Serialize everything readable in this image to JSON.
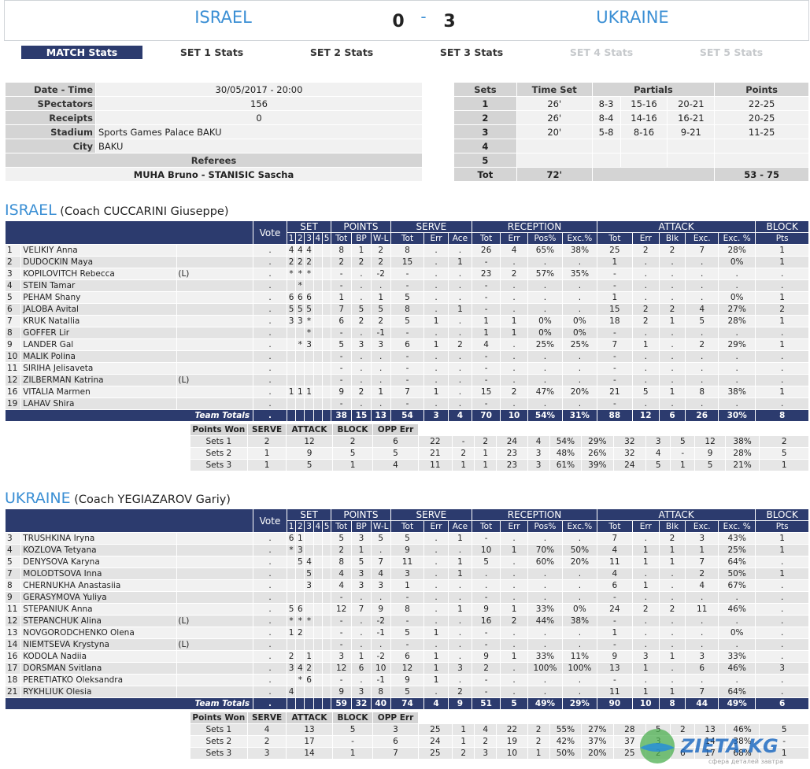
{
  "header": {
    "team_home": "ISRAEL",
    "team_away": "UKRAINE",
    "score_home": "0",
    "score_away": "3",
    "separator": "-"
  },
  "tabs": [
    {
      "label": "MATCH Stats",
      "state": "active"
    },
    {
      "label": "SET 1 Stats",
      "state": "normal"
    },
    {
      "label": "SET 2 Stats",
      "state": "normal"
    },
    {
      "label": "SET 3 Stats",
      "state": "normal"
    },
    {
      "label": "SET 4 Stats",
      "state": "disabled"
    },
    {
      "label": "SET 5 Stats",
      "state": "disabled"
    }
  ],
  "info": {
    "date_label": "Date - Time",
    "date": "30/05/2017 - 20:00",
    "spectators_label": "SPectators",
    "spectators": "156",
    "receipts_label": "Receipts",
    "receipts": "0",
    "stadium_label": "Stadium",
    "stadium": "Sports Games Palace BAKU",
    "city_label": "City",
    "city": "BAKU",
    "referees_label": "Referees",
    "referees": "MUHA Bruno - STANISIC Sascha"
  },
  "sets": {
    "headers": [
      "Sets",
      "Time Set",
      "Partials",
      "Points"
    ],
    "rows": [
      [
        "1",
        "26'",
        "8-3",
        "15-16",
        "20-21",
        "22-25"
      ],
      [
        "2",
        "26'",
        "8-4",
        "14-16",
        "16-21",
        "20-25"
      ],
      [
        "3",
        "20'",
        "5-8",
        "8-16",
        "9-21",
        "11-25"
      ],
      [
        "4",
        "",
        "",
        "",
        "",
        ""
      ],
      [
        "5",
        "",
        "",
        "",
        "",
        ""
      ]
    ],
    "total": [
      "Tot",
      "72'",
      "",
      "",
      "",
      "53 - 75"
    ]
  },
  "table_headers": {
    "vote": "Vote",
    "groups": [
      "SET",
      "POINTS",
      "SERVE",
      "RECEPTION",
      "ATTACK",
      "BLOCK"
    ],
    "sub": [
      "1",
      "2",
      "3",
      "4",
      "5",
      "Tot",
      "BP",
      "W-L",
      "Tot",
      "Err",
      "Ace",
      "Tot",
      "Err",
      "Pos%",
      "Exc.%",
      "Tot",
      "Err",
      "Blk",
      "Exc.",
      "Exc. %",
      "Pts"
    ],
    "team_totals": "Team Totals",
    "pw_headers": [
      "Points Won",
      "SERVE",
      "ATTACK",
      "BLOCK",
      "OPP Err"
    ]
  },
  "israel": {
    "name": "ISRAEL",
    "coach": "(Coach CUCCARINI Giuseppe)",
    "players": [
      [
        "1",
        "VELIKIY Anna",
        "",
        ".",
        "4",
        "4",
        "4",
        "",
        "",
        "8",
        "1",
        "2",
        "8",
        ".",
        ".",
        "26",
        "4",
        "65%",
        "38%",
        "25",
        "2",
        "2",
        "7",
        "28%",
        "1"
      ],
      [
        "2",
        "DUDOCKIN Maya",
        "",
        ".",
        "2",
        "2",
        "2",
        "",
        "",
        "2",
        "2",
        "2",
        "15",
        ".",
        "1",
        "-",
        ".",
        ".",
        ".",
        "1",
        ".",
        ".",
        ".",
        "0%",
        "1"
      ],
      [
        "3",
        "KOPILOVITCH Rebecca",
        "(L)",
        ".",
        "*",
        "*",
        "*",
        "",
        "",
        "-",
        ".",
        "-2",
        "-",
        ".",
        ".",
        "23",
        "2",
        "57%",
        "35%",
        "-",
        ".",
        ".",
        ".",
        ".",
        "."
      ],
      [
        "4",
        "STEIN Tamar",
        "",
        ".",
        "",
        "*",
        "",
        "",
        "",
        "-",
        ".",
        ".",
        "-",
        ".",
        ".",
        "-",
        ".",
        ".",
        ".",
        "-",
        ".",
        ".",
        ".",
        ".",
        "."
      ],
      [
        "5",
        "PEHAM Shany",
        "",
        ".",
        "6",
        "6",
        "6",
        "",
        "",
        "1",
        ".",
        "1",
        "5",
        ".",
        ".",
        "-",
        ".",
        ".",
        ".",
        "1",
        ".",
        ".",
        ".",
        "0%",
        "1"
      ],
      [
        "6",
        "JALOBA Avital",
        "",
        ".",
        "5",
        "5",
        "5",
        "",
        "",
        "7",
        "5",
        "5",
        "8",
        ".",
        "1",
        "-",
        ".",
        ".",
        ".",
        "15",
        "2",
        "2",
        "4",
        "27%",
        "2"
      ],
      [
        "7",
        "KRUK Natallia",
        "",
        ".",
        "3",
        "3",
        "*",
        "",
        "",
        "6",
        "2",
        "2",
        "5",
        "1",
        ".",
        "1",
        "1",
        "0%",
        "0%",
        "18",
        "2",
        "1",
        "5",
        "28%",
        "1"
      ],
      [
        "8",
        "GOFFER Lir",
        "",
        ".",
        "",
        "",
        "*",
        "",
        "",
        "-",
        ".",
        "-1",
        "-",
        ".",
        ".",
        "1",
        "1",
        "0%",
        "0%",
        "-",
        ".",
        ".",
        ".",
        ".",
        "."
      ],
      [
        "9",
        "LANDER Gal",
        "",
        ".",
        "",
        "*",
        "3",
        "",
        "",
        "5",
        "3",
        "3",
        "6",
        "1",
        "2",
        "4",
        ".",
        "25%",
        "25%",
        "7",
        "1",
        ".",
        "2",
        "29%",
        "1"
      ],
      [
        "10",
        "MALIK Polina",
        "",
        ".",
        "",
        "",
        "",
        "",
        "",
        "-",
        ".",
        ".",
        "-",
        ".",
        ".",
        "-",
        ".",
        ".",
        ".",
        "-",
        ".",
        ".",
        ".",
        ".",
        "."
      ],
      [
        "11",
        "SIRIHA Jelisaveta",
        "",
        ".",
        "",
        "",
        "",
        "",
        "",
        "-",
        ".",
        ".",
        "-",
        ".",
        ".",
        "-",
        ".",
        ".",
        ".",
        "-",
        ".",
        ".",
        ".",
        ".",
        "."
      ],
      [
        "12",
        "ZILBERMAN Katrina",
        "(L)",
        ".",
        "",
        "",
        "",
        "",
        "",
        "-",
        ".",
        ".",
        "-",
        ".",
        ".",
        "-",
        ".",
        ".",
        ".",
        "-",
        ".",
        ".",
        ".",
        ".",
        "."
      ],
      [
        "16",
        "VITALIA Marmen",
        "",
        ".",
        "1",
        "1",
        "1",
        "",
        "",
        "9",
        "2",
        "1",
        "7",
        "1",
        ".",
        "15",
        "2",
        "47%",
        "20%",
        "21",
        "5",
        "1",
        "8",
        "38%",
        "1"
      ],
      [
        "19",
        "LAHAV Shira",
        "",
        ".",
        "",
        "",
        "",
        "",
        "",
        "-",
        ".",
        ".",
        "-",
        ".",
        ".",
        "-",
        ".",
        ".",
        ".",
        "-",
        ".",
        ".",
        ".",
        ".",
        "."
      ]
    ],
    "totals": [
      ".",
      "",
      "",
      "",
      "",
      "",
      "38",
      "15",
      "13",
      "54",
      "3",
      "4",
      "70",
      "10",
      "54%",
      "31%",
      "88",
      "12",
      "6",
      "26",
      "30%",
      "8"
    ],
    "points_won": [
      [
        "Sets 1",
        "2",
        "12",
        "2",
        "6",
        "22",
        "-",
        "2",
        "24",
        "4",
        "54%",
        "29%",
        "32",
        "3",
        "5",
        "12",
        "38%",
        "2"
      ],
      [
        "Sets 2",
        "1",
        "9",
        "5",
        "5",
        "21",
        "2",
        "1",
        "23",
        "3",
        "48%",
        "26%",
        "32",
        "4",
        "-",
        "9",
        "28%",
        "5"
      ],
      [
        "Sets 3",
        "1",
        "5",
        "1",
        "4",
        "11",
        "1",
        "1",
        "23",
        "3",
        "61%",
        "39%",
        "24",
        "5",
        "1",
        "5",
        "21%",
        "1"
      ]
    ]
  },
  "ukraine": {
    "name": "UKRAINE",
    "coach": "(Coach YEGIAZAROV Gariy)",
    "players": [
      [
        "3",
        "TRUSHKINA Iryna",
        "",
        ".",
        "6",
        "1",
        "",
        "",
        "",
        "5",
        "3",
        "5",
        "5",
        ".",
        "1",
        "-",
        ".",
        ".",
        ".",
        "7",
        ".",
        "2",
        "3",
        "43%",
        "1"
      ],
      [
        "4",
        "KOZLOVA Tetyana",
        "",
        ".",
        "*",
        "3",
        "",
        "",
        "",
        "2",
        "1",
        ".",
        "9",
        ".",
        ".",
        "10",
        "1",
        "70%",
        "50%",
        "4",
        "1",
        "1",
        "1",
        "25%",
        "1"
      ],
      [
        "5",
        "DENYSOVA Karyna",
        "",
        ".",
        "",
        "5",
        "4",
        "",
        "",
        "8",
        "5",
        "7",
        "11",
        ".",
        "1",
        "5",
        ".",
        "60%",
        "20%",
        "11",
        "1",
        "1",
        "7",
        "64%",
        "."
      ],
      [
        "7",
        "MOLODTSOVA Inna",
        "",
        ".",
        "",
        "",
        "5",
        "",
        "",
        "4",
        "3",
        "4",
        "3",
        ".",
        "1",
        ".",
        ".",
        ".",
        ".",
        "4",
        ".",
        ".",
        "2",
        "50%",
        "1"
      ],
      [
        "8",
        "CHERNUKHA Anastasiia",
        "",
        ".",
        "",
        "",
        "3",
        "",
        "",
        "4",
        "3",
        "3",
        "1",
        ".",
        ".",
        ".",
        ".",
        ".",
        ".",
        "6",
        "1",
        ".",
        "4",
        "67%",
        "."
      ],
      [
        "9",
        "GERASYMOVA Yuliya",
        "",
        ".",
        "",
        "",
        "",
        "",
        "",
        "-",
        ".",
        ".",
        "-",
        ".",
        ".",
        "-",
        ".",
        ".",
        ".",
        "-",
        ".",
        ".",
        ".",
        ".",
        "."
      ],
      [
        "11",
        "STEPANIUK Anna",
        "",
        ".",
        "5",
        "6",
        "",
        "",
        "",
        "12",
        "7",
        "9",
        "8",
        ".",
        "1",
        "9",
        "1",
        "33%",
        "0%",
        "24",
        "2",
        "2",
        "11",
        "46%",
        "."
      ],
      [
        "12",
        "STEPANCHUK Alina",
        "(L)",
        ".",
        "*",
        "*",
        "*",
        "",
        "",
        "-",
        ".",
        "-2",
        "-",
        ".",
        ".",
        "16",
        "2",
        "44%",
        "38%",
        "-",
        ".",
        ".",
        ".",
        ".",
        "."
      ],
      [
        "13",
        "NOVGORODCHENKO Olena",
        "",
        ".",
        "1",
        "2",
        "",
        "",
        "",
        "-",
        ".",
        "-1",
        "5",
        "1",
        ".",
        "-",
        ".",
        ".",
        ".",
        "1",
        ".",
        ".",
        ".",
        "0%",
        "."
      ],
      [
        "14",
        "NIEMTSEVA Krystyna",
        "(L)",
        ".",
        "",
        "",
        "",
        "",
        "",
        "-",
        ".",
        ".",
        "-",
        ".",
        ".",
        "-",
        ".",
        ".",
        ".",
        "-",
        ".",
        ".",
        ".",
        ".",
        "."
      ],
      [
        "16",
        "KODOLA Nadiia",
        "",
        ".",
        "2",
        "",
        "1",
        "",
        "",
        "3",
        "1",
        "-2",
        "6",
        "1",
        ".",
        "9",
        "1",
        "33%",
        "11%",
        "9",
        "3",
        "1",
        "3",
        "33%",
        "."
      ],
      [
        "17",
        "DORSMAN Svitlana",
        "",
        ".",
        "3",
        "4",
        "2",
        "",
        "",
        "12",
        "6",
        "10",
        "12",
        "1",
        "3",
        "2",
        ".",
        "100%",
        "100%",
        "13",
        "1",
        ".",
        "6",
        "46%",
        "3"
      ],
      [
        "18",
        "PERETIATKO Oleksandra",
        "",
        ".",
        "",
        "*",
        "6",
        "",
        "",
        "-",
        ".",
        "-1",
        "9",
        "1",
        ".",
        "-",
        ".",
        ".",
        ".",
        "-",
        ".",
        ".",
        ".",
        ".",
        "."
      ],
      [
        "21",
        "RYKHLIUK Olesia",
        "",
        ".",
        "4",
        "",
        "",
        "",
        "",
        "9",
        "3",
        "8",
        "5",
        ".",
        "2",
        "-",
        ".",
        ".",
        ".",
        "11",
        "1",
        "1",
        "7",
        "64%",
        "."
      ]
    ],
    "totals": [
      ".",
      "",
      "",
      "",
      "",
      "",
      "59",
      "32",
      "40",
      "74",
      "4",
      "9",
      "51",
      "5",
      "49%",
      "29%",
      "90",
      "10",
      "8",
      "44",
      "49%",
      "6"
    ],
    "points_won": [
      [
        "Sets 1",
        "4",
        "13",
        "5",
        "3",
        "25",
        "1",
        "4",
        "22",
        "2",
        "55%",
        "27%",
        "28",
        "5",
        "2",
        "13",
        "46%",
        "5"
      ],
      [
        "Sets 2",
        "2",
        "17",
        "-",
        "6",
        "24",
        "1",
        "2",
        "19",
        "2",
        "42%",
        "37%",
        "37",
        "3",
        "-",
        "14",
        "38%",
        "-"
      ],
      [
        "Sets 3",
        "3",
        "14",
        "1",
        "7",
        "25",
        "2",
        "3",
        "10",
        "1",
        "50%",
        "20%",
        "25",
        "2",
        "6",
        "17",
        "68%",
        "1"
      ]
    ]
  },
  "watermark": {
    "text": "ZIETA.KG",
    "tagline": "сфера деталей завтра"
  },
  "colors": {
    "header_blue": "#3b8fd4",
    "navy": "#2c3b6e",
    "row_light": "#f1f1f1",
    "row_dark": "#e3e3e3",
    "label_grey": "#d4d4d4"
  }
}
